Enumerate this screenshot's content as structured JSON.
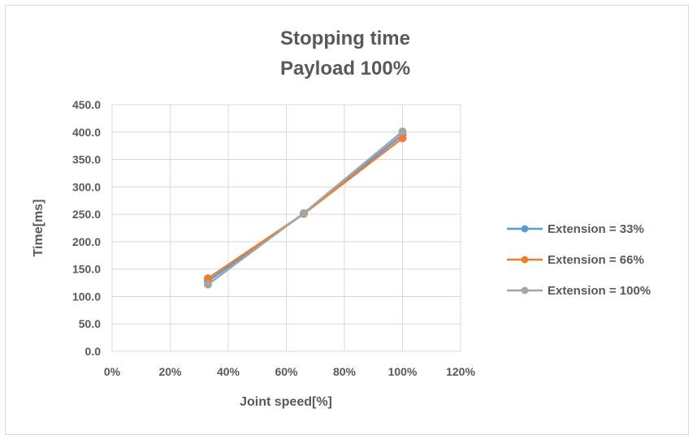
{
  "chart_data": {
    "type": "line",
    "title": [
      "Stopping time",
      "Payload 100%"
    ],
    "xlabel": "Joint speed[%]",
    "ylabel": "Time[ms]",
    "xlim": [
      0,
      120
    ],
    "ylim": [
      0,
      450
    ],
    "x_ticks": [
      "0%",
      "20%",
      "40%",
      "60%",
      "80%",
      "100%",
      "120%"
    ],
    "y_ticks": [
      "0.0",
      "50.0",
      "100.0",
      "150.0",
      "200.0",
      "250.0",
      "300.0",
      "350.0",
      "400.0",
      "450.0"
    ],
    "grid": true,
    "legend_position": "right",
    "x": [
      33,
      66,
      100
    ],
    "series": [
      {
        "name": "Extension = 33%",
        "color": "#5b9bd5",
        "values": [
          128,
          251,
          395
        ]
      },
      {
        "name": "Extension = 66%",
        "color": "#ed7d31",
        "values": [
          133,
          251,
          389
        ]
      },
      {
        "name": "Extension = 100%",
        "color": "#a5a5a5",
        "values": [
          122,
          252,
          401
        ]
      }
    ]
  }
}
